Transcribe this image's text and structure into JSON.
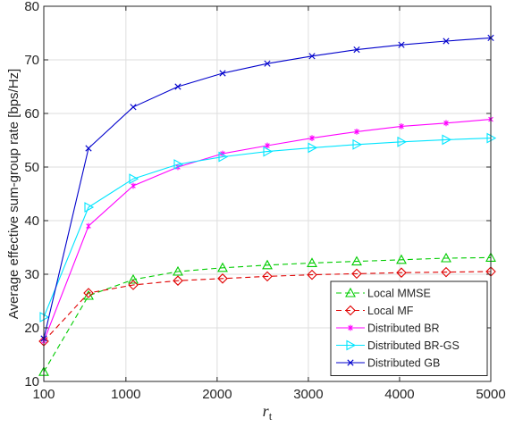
{
  "chart_data": {
    "type": "line",
    "xlabel": "r",
    "xlabel_sub": "t",
    "ylabel": "Average effective sum-group rate [bps/Hz]",
    "xlim": [
      100,
      5000
    ],
    "ylim": [
      10,
      80
    ],
    "xticks": [
      100,
      1000,
      2000,
      3000,
      4000,
      5000
    ],
    "yticks": [
      10,
      20,
      30,
      40,
      50,
      60,
      70,
      80
    ],
    "grid": true,
    "legend_position": "bottom-right",
    "x": [
      100,
      590,
      1080,
      1570,
      2060,
      2550,
      3040,
      3530,
      4020,
      4510,
      5000
    ],
    "series": [
      {
        "name": "Local MMSE",
        "color": "#00cc00",
        "dash": "dashed",
        "marker": "triangle-up",
        "values": [
          11.8,
          26.0,
          29.0,
          30.5,
          31.2,
          31.7,
          32.1,
          32.4,
          32.7,
          33.0,
          33.1
        ]
      },
      {
        "name": "Local MF",
        "color": "#e00000",
        "dash": "dashed",
        "marker": "diamond",
        "values": [
          17.5,
          26.5,
          28.0,
          28.8,
          29.2,
          29.6,
          29.9,
          30.1,
          30.3,
          30.4,
          30.5
        ]
      },
      {
        "name": "Distributed BR",
        "color": "#ff00ff",
        "dash": "solid",
        "marker": "asterisk",
        "values": [
          17.5,
          39.0,
          46.5,
          50.0,
          52.5,
          54.0,
          55.4,
          56.6,
          57.6,
          58.2,
          58.9
        ]
      },
      {
        "name": "Distributed BR-GS",
        "color": "#00e5ff",
        "dash": "solid",
        "marker": "triangle-right",
        "values": [
          22.0,
          42.5,
          47.8,
          50.5,
          51.9,
          52.9,
          53.6,
          54.2,
          54.7,
          55.1,
          55.4
        ]
      },
      {
        "name": "Distributed GB",
        "color": "#0000cc",
        "dash": "solid",
        "marker": "x",
        "values": [
          18.0,
          53.5,
          61.2,
          65.0,
          67.5,
          69.3,
          70.7,
          71.9,
          72.8,
          73.5,
          74.1
        ]
      }
    ]
  }
}
